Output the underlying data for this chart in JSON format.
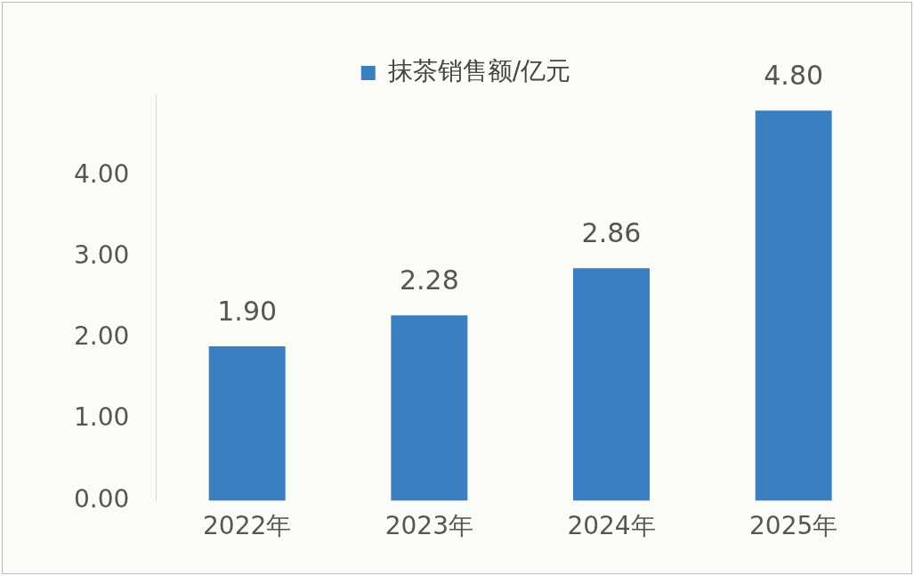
{
  "chart_data": {
    "type": "bar",
    "categories": [
      "2022年",
      "2023年",
      "2024年",
      "2025年"
    ],
    "series": [
      {
        "name": "抹茶销售额/亿元",
        "color": "#3a7fc1",
        "values": [
          1.9,
          2.28,
          2.86,
          4.8
        ],
        "value_labels": [
          "1.90",
          "2.28",
          "2.86",
          "4.80"
        ]
      }
    ],
    "ylim": [
      0,
      5
    ],
    "yticks": [
      {
        "value": 0,
        "label": "0.00"
      },
      {
        "value": 1,
        "label": "1.00"
      },
      {
        "value": 2,
        "label": "2.00"
      },
      {
        "value": 3,
        "label": "3.00"
      },
      {
        "value": 4,
        "label": "4.00"
      }
    ],
    "grid": false,
    "legend": "top"
  }
}
